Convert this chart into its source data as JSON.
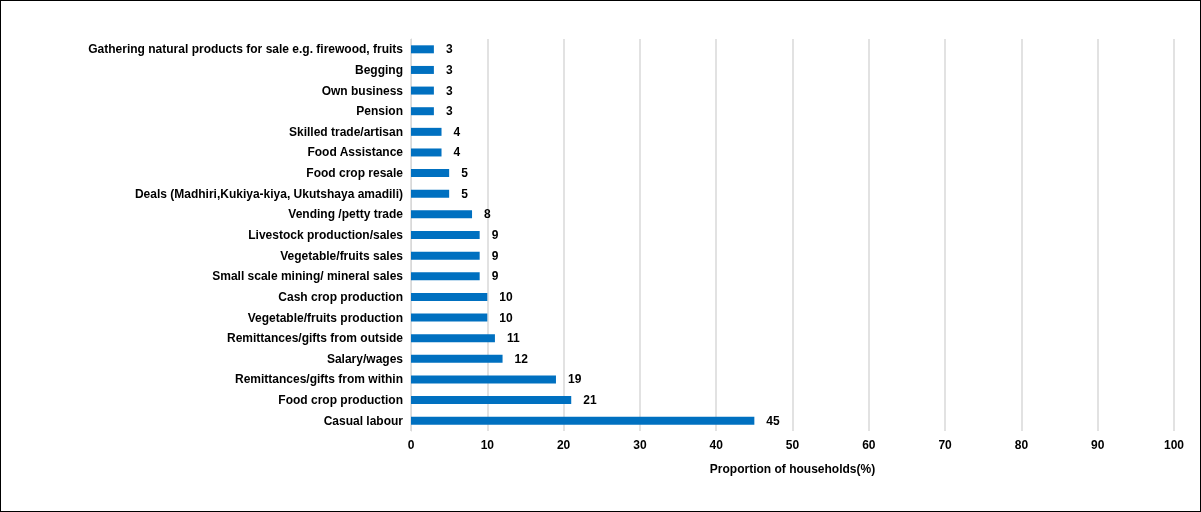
{
  "chart_data": {
    "type": "bar",
    "orientation": "horizontal",
    "xlabel": "Proportion of households(%)",
    "categories": [
      "Gathering natural products for sale e.g. firewood, fruits",
      "Begging",
      "Own business",
      "Pension",
      "Skilled trade/artisan",
      "Food Assistance",
      "Food crop resale",
      "Deals (Madhiri,Kukiya-kiya, Ukutshaya amadili)",
      "Vending /petty trade",
      "Livestock production/sales",
      "Vegetable/fruits sales",
      "Small scale mining/ mineral sales",
      "Cash crop production",
      "Vegetable/fruits production",
      "Remittances/gifts from outside",
      "Salary/wages",
      "Remittances/gifts from within",
      "Food crop production",
      "Casual labour"
    ],
    "values": [
      3,
      3,
      3,
      3,
      4,
      4,
      5,
      5,
      8,
      9,
      9,
      9,
      10,
      10,
      11,
      12,
      19,
      21,
      45
    ],
    "color": "#0070c0",
    "xlim": [
      0,
      100
    ],
    "xticks": [
      0,
      10,
      20,
      30,
      40,
      50,
      60,
      70,
      80,
      90,
      100
    ],
    "grid": "x",
    "data_labels": true
  }
}
